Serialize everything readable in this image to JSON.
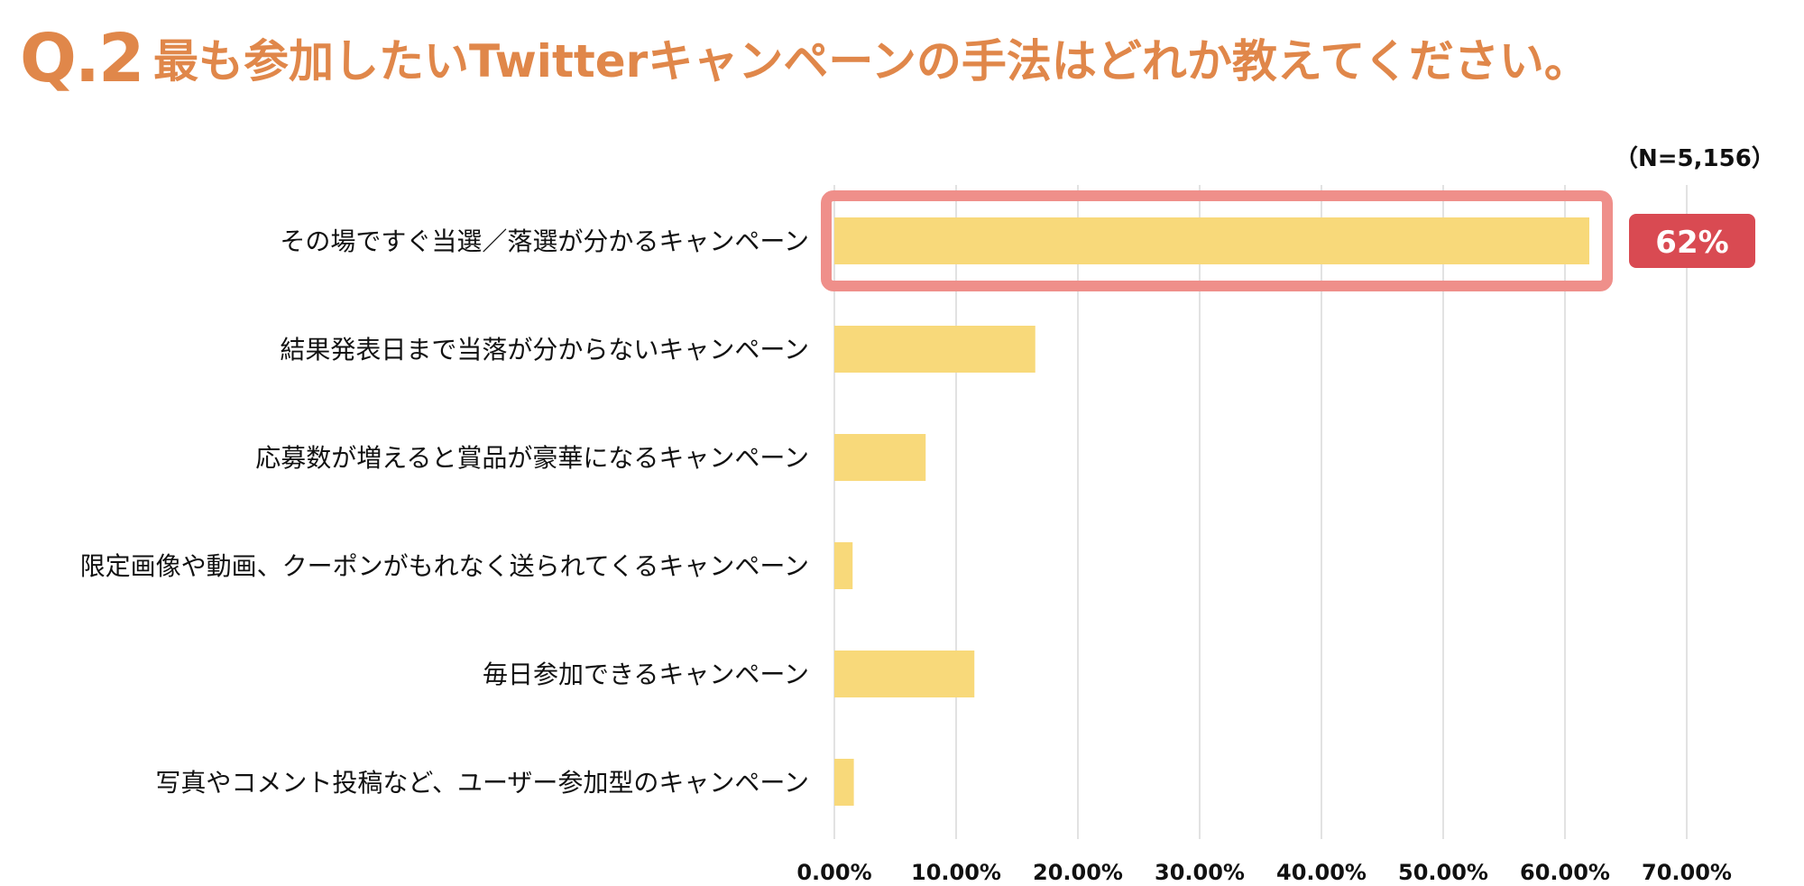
{
  "question": {
    "number": "Q.2",
    "text": "最も参加したいTwitterキャンペーンの手法はどれか教えてください。"
  },
  "sample_size": "（N=5,156）",
  "colors": {
    "title": "#e0874a",
    "bar": "#f8d97a",
    "highlight_border": "#ef8f8a",
    "callout_bg": "#d94a52",
    "callout_text": "#ffffff",
    "grid": "#d9d9d9",
    "axis_text": "#111111",
    "label_text": "#111111"
  },
  "chart_data": {
    "type": "bar",
    "orientation": "horizontal",
    "categories": [
      "その場ですぐ当選／落選が分かるキャンペーン",
      "結果発表日まで当落が分からないキャンペーン",
      "応募数が増えると賞品が豪華になるキャンペーン",
      "限定画像や動画、クーポンがもれなく送られてくるキャンペーン",
      "毎日参加できるキャンペーン",
      "写真やコメント投稿など、ユーザー参加型のキャンペーン"
    ],
    "values": [
      62,
      16.5,
      7.5,
      1.5,
      11.5,
      1.6
    ],
    "xlim": [
      0,
      70
    ],
    "xticks": [
      0,
      10,
      20,
      30,
      40,
      50,
      60,
      70
    ],
    "xtick_labels": [
      "0.00%",
      "10.00%",
      "20.00%",
      "30.00%",
      "40.00%",
      "50.00%",
      "60.00%",
      "70.00%"
    ],
    "grid": true,
    "highlight": {
      "index": 0,
      "label": "62%"
    }
  }
}
